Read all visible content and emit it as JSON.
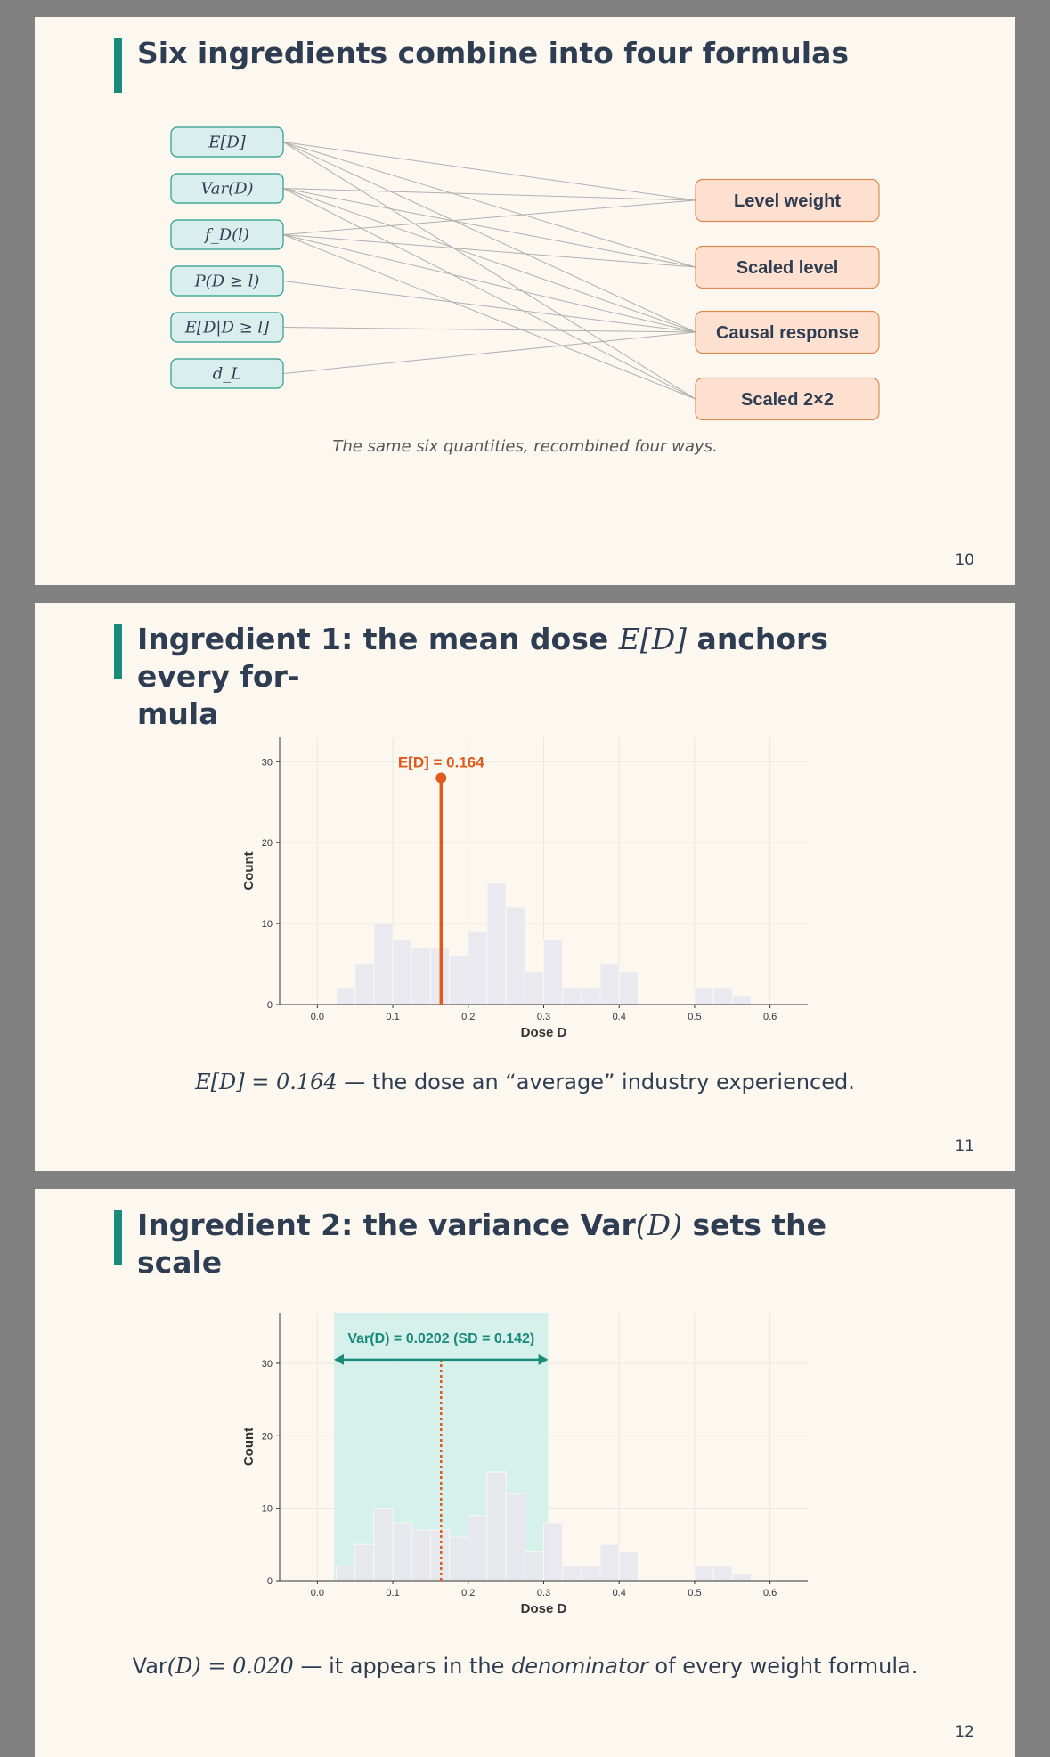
{
  "slides": [
    {
      "title": "Six ingredients combine into four formulas",
      "page": "10",
      "diagram": {
        "ingredients": [
          "E[D]",
          "Var(D)",
          "f_D(l)",
          "P(D ≥ l)",
          "E[D|D ≥ l]",
          "d_L"
        ],
        "formulas": [
          "Level weight",
          "Scaled level",
          "Causal response",
          "Scaled 2×2"
        ],
        "links": [
          [
            0,
            0
          ],
          [
            0,
            1
          ],
          [
            0,
            2
          ],
          [
            0,
            3
          ],
          [
            1,
            0
          ],
          [
            1,
            1
          ],
          [
            1,
            2
          ],
          [
            1,
            3
          ],
          [
            2,
            0
          ],
          [
            2,
            1
          ],
          [
            2,
            2
          ],
          [
            2,
            3
          ],
          [
            3,
            2
          ],
          [
            4,
            2
          ],
          [
            5,
            2
          ]
        ],
        "caption": "The same six quantities, recombined four ways."
      }
    },
    {
      "title_prefix": "Ingredient 1: the mean dose",
      "title_math": "E[D]",
      "title_suffix": "anchors every for-",
      "title_line2": "mula",
      "page": "11",
      "caption_math": "E[D] = 0.164",
      "caption_text": " — the dose an “average” industry experienced."
    },
    {
      "title_prefix": "Ingredient 2: the variance Var",
      "title_math": "(D)",
      "title_suffix": "sets the scale",
      "page": "12",
      "caption_math_a": "Var",
      "caption_math_b": "(D) = 0.020",
      "caption_text_a": " — it appears in the ",
      "caption_em": "denominator",
      "caption_text_b": " of every weight formula."
    }
  ],
  "chart_data": [
    {
      "type": "bar",
      "title": "",
      "xlabel": "Dose  D",
      "ylabel": "Count",
      "xlim": [
        -0.05,
        0.65
      ],
      "ylim": [
        0,
        33
      ],
      "xticks": [
        0.0,
        0.1,
        0.2,
        0.3,
        0.4,
        0.5,
        0.6
      ],
      "yticks": [
        0,
        10,
        20,
        30
      ],
      "bin_width": 0.025,
      "bin_starts": [
        0.025,
        0.05,
        0.075,
        0.1,
        0.125,
        0.15,
        0.175,
        0.2,
        0.225,
        0.25,
        0.275,
        0.3,
        0.325,
        0.35,
        0.375,
        0.4,
        0.425,
        0.45,
        0.475,
        0.5,
        0.525,
        0.55
      ],
      "counts": [
        2,
        5,
        10,
        8,
        7,
        7,
        6,
        9,
        15,
        12,
        4,
        8,
        2,
        2,
        5,
        4,
        0,
        0,
        0,
        2,
        2,
        1
      ],
      "annotation": {
        "label": "E[D] = 0.164",
        "x": 0.164,
        "y": 28,
        "color": "#e05a1e"
      },
      "grid": true
    },
    {
      "type": "bar",
      "title": "",
      "xlabel": "Dose  D",
      "ylabel": "Count",
      "xlim": [
        -0.05,
        0.65
      ],
      "ylim": [
        0,
        37
      ],
      "xticks": [
        0.0,
        0.1,
        0.2,
        0.3,
        0.4,
        0.5,
        0.6
      ],
      "yticks": [
        0,
        10,
        20,
        30
      ],
      "bin_width": 0.025,
      "bin_starts": [
        0.025,
        0.05,
        0.075,
        0.1,
        0.125,
        0.15,
        0.175,
        0.2,
        0.225,
        0.25,
        0.275,
        0.3,
        0.325,
        0.35,
        0.375,
        0.4,
        0.425,
        0.45,
        0.475,
        0.5,
        0.525,
        0.55
      ],
      "counts": [
        2,
        5,
        10,
        8,
        7,
        7,
        6,
        9,
        15,
        12,
        4,
        8,
        2,
        2,
        5,
        4,
        0,
        0,
        0,
        2,
        2,
        1
      ],
      "annotation": {
        "label": "Var(D) = 0.0202   (SD = 0.142)",
        "mean": 0.164,
        "sd_low": 0.022,
        "sd_high": 0.306,
        "arrow_y": 30.5,
        "color": "#1a8a7a",
        "mean_color": "#e05a1e"
      },
      "grid": true
    }
  ]
}
